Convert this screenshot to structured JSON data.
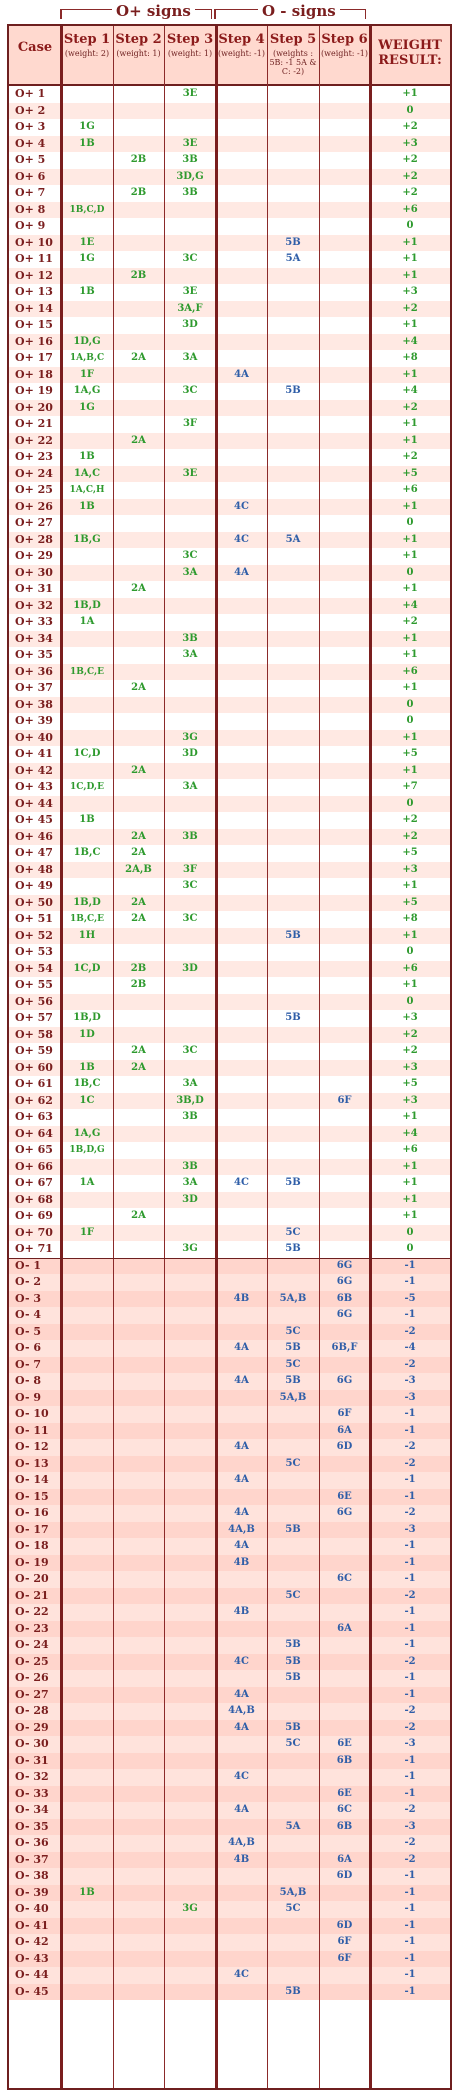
{
  "header": {
    "group_plus": "O+ signs",
    "group_minus": "O - signs",
    "columns": [
      {
        "title": "Case",
        "sub": ""
      },
      {
        "title": "Step 1",
        "sub": "(weight: 2)"
      },
      {
        "title": "Step 2",
        "sub": "(weight: 1)"
      },
      {
        "title": "Step 3",
        "sub": "(weight: 1)"
      },
      {
        "title": "Step 4",
        "sub": "(weight: -1)"
      },
      {
        "title": "Step 5",
        "sub": "(weights : 5B: -1 5A & C: -2)"
      },
      {
        "title": "Step 6",
        "sub": "(weight: -1)"
      },
      {
        "title": "WEIGHT RESULT:",
        "sub": ""
      }
    ]
  },
  "rows": [
    [
      "O+ 1",
      "",
      "",
      "3E",
      "",
      "",
      "",
      "+1"
    ],
    [
      "O+ 2",
      "",
      "",
      "",
      "",
      "",
      "",
      "0"
    ],
    [
      "O+ 3",
      "1G",
      "",
      "",
      "",
      "",
      "",
      "+2"
    ],
    [
      "O+ 4",
      "1B",
      "",
      "3E",
      "",
      "",
      "",
      "+3"
    ],
    [
      "O+ 5",
      "",
      "2B",
      "3B",
      "",
      "",
      "",
      "+2"
    ],
    [
      "O+ 6",
      "",
      "",
      "3D,G",
      "",
      "",
      "",
      "+2"
    ],
    [
      "O+ 7",
      "",
      "2B",
      "3B",
      "",
      "",
      "",
      "+2"
    ],
    [
      "O+ 8",
      "1B,C,D",
      "",
      "",
      "",
      "",
      "",
      "+6"
    ],
    [
      "O+ 9",
      "",
      "",
      "",
      "",
      "",
      "",
      "0"
    ],
    [
      "O+ 10",
      "1E",
      "",
      "",
      "",
      "5B",
      "",
      "+1"
    ],
    [
      "O+ 11",
      "1G",
      "",
      "3C",
      "",
      "5A",
      "",
      "+1"
    ],
    [
      "O+ 12",
      "",
      "2B",
      "",
      "",
      "",
      "",
      "+1"
    ],
    [
      "O+ 13",
      "1B",
      "",
      "3E",
      "",
      "",
      "",
      "+3"
    ],
    [
      "O+ 14",
      "",
      "",
      "3A,F",
      "",
      "",
      "",
      "+2"
    ],
    [
      "O+ 15",
      "",
      "",
      "3D",
      "",
      "",
      "",
      "+1"
    ],
    [
      "O+ 16",
      "1D,G",
      "",
      "",
      "",
      "",
      "",
      "+4"
    ],
    [
      "O+ 17",
      "1A,B,C",
      "2A",
      "3A",
      "",
      "",
      "",
      "+8"
    ],
    [
      "O+ 18",
      "1F",
      "",
      "",
      "4A",
      "",
      "",
      "+1"
    ],
    [
      "O+ 19",
      "1A,G",
      "",
      "3C",
      "",
      "5B",
      "",
      "+4"
    ],
    [
      "O+ 20",
      "1G",
      "",
      "",
      "",
      "",
      "",
      "+2"
    ],
    [
      "O+ 21",
      "",
      "",
      "3F",
      "",
      "",
      "",
      "+1"
    ],
    [
      "O+ 22",
      "",
      "2A",
      "",
      "",
      "",
      "",
      "+1"
    ],
    [
      "O+ 23",
      "1B",
      "",
      "",
      "",
      "",
      "",
      "+2"
    ],
    [
      "O+ 24",
      "1A,C",
      "",
      "3E",
      "",
      "",
      "",
      "+5"
    ],
    [
      "O+ 25",
      "1A,C,H",
      "",
      "",
      "",
      "",
      "",
      "+6"
    ],
    [
      "O+ 26",
      "1B",
      "",
      "",
      "4C",
      "",
      "",
      "+1"
    ],
    [
      "O+ 27",
      "",
      "",
      "",
      "",
      "",
      "",
      "0"
    ],
    [
      "O+ 28",
      "1B,G",
      "",
      "",
      "4C",
      "5A",
      "",
      "+1"
    ],
    [
      "O+ 29",
      "",
      "",
      "3C",
      "",
      "",
      "",
      "+1"
    ],
    [
      "O+ 30",
      "",
      "",
      "3A",
      "4A",
      "",
      "",
      "0"
    ],
    [
      "O+ 31",
      "",
      "2A",
      "",
      "",
      "",
      "",
      "+1"
    ],
    [
      "O+ 32",
      "1B,D",
      "",
      "",
      "",
      "",
      "",
      "+4"
    ],
    [
      "O+ 33",
      "1A",
      "",
      "",
      "",
      "",
      "",
      "+2"
    ],
    [
      "O+ 34",
      "",
      "",
      "3B",
      "",
      "",
      "",
      "+1"
    ],
    [
      "O+ 35",
      "",
      "",
      "3A",
      "",
      "",
      "",
      "+1"
    ],
    [
      "O+ 36",
      "1B,C,E",
      "",
      "",
      "",
      "",
      "",
      "+6"
    ],
    [
      "O+ 37",
      "",
      "2A",
      "",
      "",
      "",
      "",
      "+1"
    ],
    [
      "O+ 38",
      "",
      "",
      "",
      "",
      "",
      "",
      "0"
    ],
    [
      "O+ 39",
      "",
      "",
      "",
      "",
      "",
      "",
      "0"
    ],
    [
      "O+ 40",
      "",
      "",
      "3G",
      "",
      "",
      "",
      "+1"
    ],
    [
      "O+ 41",
      "1C,D",
      "",
      "3D",
      "",
      "",
      "",
      "+5"
    ],
    [
      "O+ 42",
      "",
      "2A",
      "",
      "",
      "",
      "",
      "+1"
    ],
    [
      "O+ 43",
      "1C,D,E",
      "",
      "3A",
      "",
      "",
      "",
      "+7"
    ],
    [
      "O+ 44",
      "",
      "",
      "",
      "",
      "",
      "",
      "0"
    ],
    [
      "O+ 45",
      "1B",
      "",
      "",
      "",
      "",
      "",
      "+2"
    ],
    [
      "O+ 46",
      "",
      "2A",
      "3B",
      "",
      "",
      "",
      "+2"
    ],
    [
      "O+ 47",
      "1B,C",
      "2A",
      "",
      "",
      "",
      "",
      "+5"
    ],
    [
      "O+ 48",
      "",
      "2A,B",
      "3F",
      "",
      "",
      "",
      "+3"
    ],
    [
      "O+ 49",
      "",
      "",
      "3C",
      "",
      "",
      "",
      "+1"
    ],
    [
      "O+ 50",
      "1B,D",
      "2A",
      "",
      "",
      "",
      "",
      "+5"
    ],
    [
      "O+ 51",
      "1B,C,E",
      "2A",
      "3C",
      "",
      "",
      "",
      "+8"
    ],
    [
      "O+ 52",
      "1H",
      "",
      "",
      "",
      "5B",
      "",
      "+1"
    ],
    [
      "O+ 53",
      "",
      "",
      "",
      "",
      "",
      "",
      "0"
    ],
    [
      "O+ 54",
      "1C,D",
      "2B",
      "3D",
      "",
      "",
      "",
      "+6"
    ],
    [
      "O+ 55",
      "",
      "2B",
      "",
      "",
      "",
      "",
      "+1"
    ],
    [
      "O+ 56",
      "",
      "",
      "",
      "",
      "",
      "",
      "0"
    ],
    [
      "O+ 57",
      "1B,D",
      "",
      "",
      "",
      "5B",
      "",
      "+3"
    ],
    [
      "O+ 58",
      "1D",
      "",
      "",
      "",
      "",
      "",
      "+2"
    ],
    [
      "O+ 59",
      "",
      "2A",
      "3C",
      "",
      "",
      "",
      "+2"
    ],
    [
      "O+ 60",
      "1B",
      "2A",
      "",
      "",
      "",
      "",
      "+3"
    ],
    [
      "O+ 61",
      "1B,C",
      "",
      "3A",
      "",
      "",
      "",
      "+5"
    ],
    [
      "O+ 62",
      "1C",
      "",
      "3B,D",
      "",
      "",
      "6F",
      "+3"
    ],
    [
      "O+ 63",
      "",
      "",
      "3B",
      "",
      "",
      "",
      "+1"
    ],
    [
      "O+ 64",
      "1A,G",
      "",
      "",
      "",
      "",
      "",
      "+4"
    ],
    [
      "O+ 65",
      "1B,D,G",
      "",
      "",
      "",
      "",
      "",
      "+6"
    ],
    [
      "O+ 66",
      "",
      "",
      "3B",
      "",
      "",
      "",
      "+1"
    ],
    [
      "O+ 67",
      "1A",
      "",
      "3A",
      "4C",
      "5B",
      "",
      "+1"
    ],
    [
      "O+ 68",
      "",
      "",
      "3D",
      "",
      "",
      "",
      "+1"
    ],
    [
      "O+ 69",
      "",
      "2A",
      "",
      "",
      "",
      "",
      "+1"
    ],
    [
      "O+ 70",
      "1F",
      "",
      "",
      "",
      "5C",
      "",
      "0"
    ],
    [
      "O+ 71",
      "",
      "",
      "3G",
      "",
      "5B",
      "",
      "0"
    ],
    [
      "O- 1",
      "",
      "",
      "",
      "",
      "",
      "6G",
      "-1"
    ],
    [
      "O- 2",
      "",
      "",
      "",
      "",
      "",
      "6G",
      "-1"
    ],
    [
      "O- 3",
      "",
      "",
      "",
      "4B",
      "5A,B",
      "6B",
      "-5"
    ],
    [
      "O- 4",
      "",
      "",
      "",
      "",
      "",
      "6G",
      "-1"
    ],
    [
      "O- 5",
      "",
      "",
      "",
      "",
      "5C",
      "",
      "-2"
    ],
    [
      "O- 6",
      "",
      "",
      "",
      "4A",
      "5B",
      "6B,F",
      "-4"
    ],
    [
      "O- 7",
      "",
      "",
      "",
      "",
      "5C",
      "",
      "-2"
    ],
    [
      "O- 8",
      "",
      "",
      "",
      "4A",
      "5B",
      "6G",
      "-3"
    ],
    [
      "O- 9",
      "",
      "",
      "",
      "",
      "5A,B",
      "",
      "-3"
    ],
    [
      "O- 10",
      "",
      "",
      "",
      "",
      "",
      "6F",
      "-1"
    ],
    [
      "O- 11",
      "",
      "",
      "",
      "",
      "",
      "6A",
      "-1"
    ],
    [
      "O- 12",
      "",
      "",
      "",
      "4A",
      "",
      "6D",
      "-2"
    ],
    [
      "O- 13",
      "",
      "",
      "",
      "",
      "5C",
      "",
      "-2"
    ],
    [
      "O- 14",
      "",
      "",
      "",
      "4A",
      "",
      "",
      "-1"
    ],
    [
      "O- 15",
      "",
      "",
      "",
      "",
      "",
      "6E",
      "-1"
    ],
    [
      "O- 16",
      "",
      "",
      "",
      "4A",
      "",
      "6G",
      "-2"
    ],
    [
      "O- 17",
      "",
      "",
      "",
      "4A,B",
      "5B",
      "",
      "-3"
    ],
    [
      "O- 18",
      "",
      "",
      "",
      "4A",
      "",
      "",
      "-1"
    ],
    [
      "O- 19",
      "",
      "",
      "",
      "4B",
      "",
      "",
      "-1"
    ],
    [
      "O- 20",
      "",
      "",
      "",
      "",
      "",
      "6C",
      "-1"
    ],
    [
      "O- 21",
      "",
      "",
      "",
      "",
      "5C",
      "",
      "-2"
    ],
    [
      "O- 22",
      "",
      "",
      "",
      "4B",
      "",
      "",
      "-1"
    ],
    [
      "O- 23",
      "",
      "",
      "",
      "",
      "",
      "6A",
      "-1"
    ],
    [
      "O- 24",
      "",
      "",
      "",
      "",
      "5B",
      "",
      "-1"
    ],
    [
      "O- 25",
      "",
      "",
      "",
      "4C",
      "5B",
      "",
      "-2"
    ],
    [
      "O- 26",
      "",
      "",
      "",
      "",
      "5B",
      "",
      "-1"
    ],
    [
      "O- 27",
      "",
      "",
      "",
      "4A",
      "",
      "",
      "-1"
    ],
    [
      "O- 28",
      "",
      "",
      "",
      "4A,B",
      "",
      "",
      "-2"
    ],
    [
      "O- 29",
      "",
      "",
      "",
      "4A",
      "5B",
      "",
      "-2"
    ],
    [
      "O- 30",
      "",
      "",
      "",
      "",
      "5C",
      "6E",
      "-3"
    ],
    [
      "O- 31",
      "",
      "",
      "",
      "",
      "",
      "6B",
      "-1"
    ],
    [
      "O- 32",
      "",
      "",
      "",
      "4C",
      "",
      "",
      "-1"
    ],
    [
      "O- 33",
      "",
      "",
      "",
      "",
      "",
      "6E",
      "-1"
    ],
    [
      "O- 34",
      "",
      "",
      "",
      "4A",
      "",
      "6C",
      "-2"
    ],
    [
      "O- 35",
      "",
      "",
      "",
      "",
      "5A",
      "6B",
      "-3"
    ],
    [
      "O- 36",
      "",
      "",
      "",
      "4A,B",
      "",
      "",
      "-2"
    ],
    [
      "O- 37",
      "",
      "",
      "",
      "4B",
      "",
      "6A",
      "-2"
    ],
    [
      "O- 38",
      "",
      "",
      "",
      "",
      "",
      "6D",
      "-1"
    ],
    [
      "O- 39",
      "1B",
      "",
      "",
      "",
      "5A,B",
      "",
      "-1"
    ],
    [
      "O- 40",
      "",
      "",
      "3G",
      "",
      "5C",
      "",
      "-1"
    ],
    [
      "O- 41",
      "",
      "",
      "",
      "",
      "",
      "6D",
      "-1"
    ],
    [
      "O- 42",
      "",
      "",
      "",
      "",
      "",
      "6F",
      "-1"
    ],
    [
      "O- 43",
      "",
      "",
      "",
      "",
      "",
      "6F",
      "-1"
    ],
    [
      "O- 44",
      "",
      "",
      "",
      "4C",
      "",
      "",
      "-1"
    ],
    [
      "O- 45",
      "",
      "",
      "",
      "",
      "5B",
      "",
      "-1"
    ]
  ],
  "colors": {
    "border": "#6e1f1f",
    "header_bg": "#ffd9cf",
    "stripe_plus": "#ffe9e3",
    "stripe_minus": "#ffd5cc",
    "positive_text": "#2e9a2e",
    "negative_text": "#2f5ea8"
  }
}
